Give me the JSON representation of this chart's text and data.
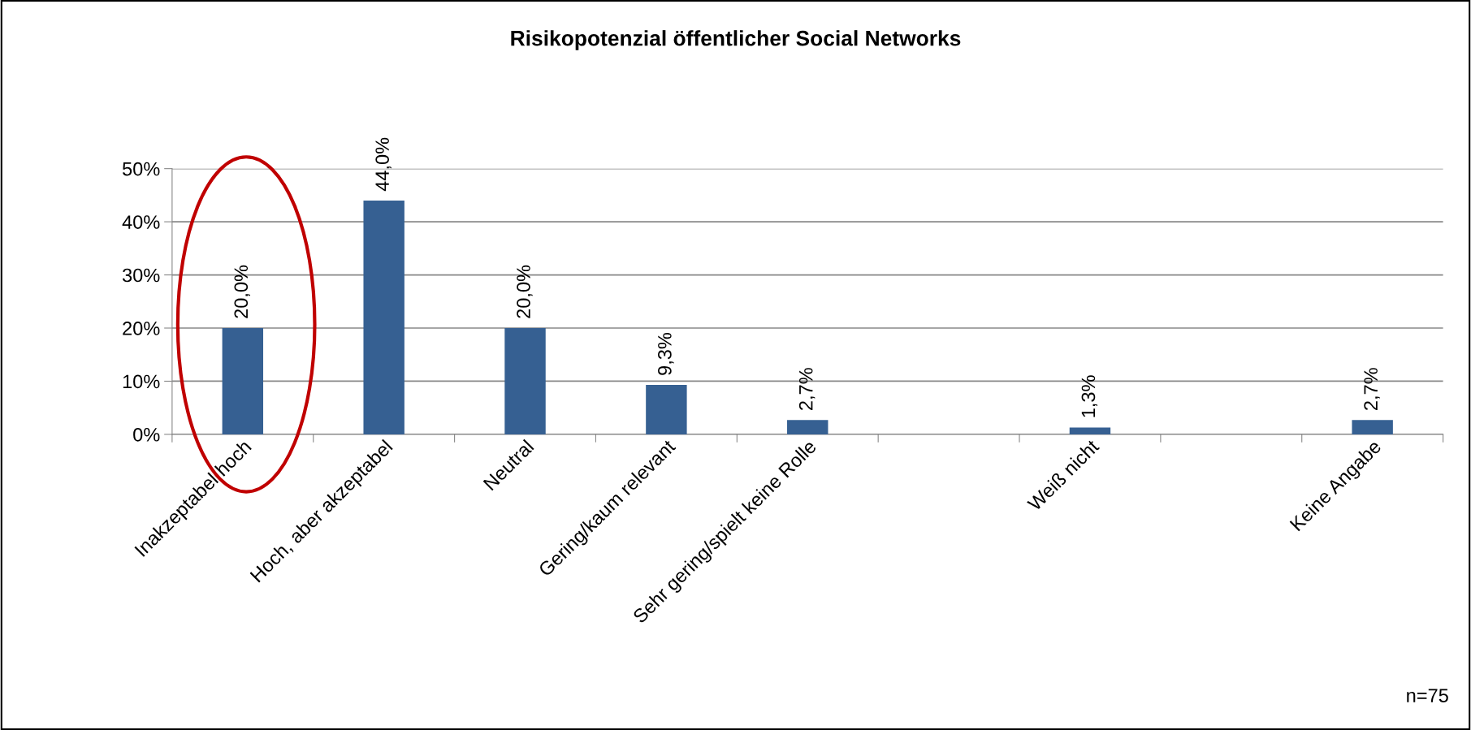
{
  "chart_data": {
    "type": "bar",
    "title": "Risikopotenzial öffentlicher Social Networks",
    "categories": [
      "Inakzeptabel hoch",
      "Hoch, aber akzeptabel",
      "Neutral",
      "Gering/kaum relevant",
      "Sehr gering/spielt keine Rolle",
      null,
      "Weiß nicht",
      null,
      "Keine Angabe"
    ],
    "values": [
      20.0,
      44.0,
      20.0,
      9.3,
      2.7,
      null,
      1.3,
      null,
      2.7
    ],
    "value_labels": [
      "20,0%",
      "44,0%",
      "20,0%",
      "9,3%",
      "2,7%",
      null,
      "1,3%",
      null,
      "2,7%"
    ],
    "color": "#366092",
    "ylim": [
      0,
      50
    ],
    "yticks": [
      {
        "value": 0,
        "label": "0%"
      },
      {
        "value": 10,
        "label": "10%"
      },
      {
        "value": 20,
        "label": "20%"
      },
      {
        "value": 30,
        "label": "30%"
      },
      {
        "value": 40,
        "label": "40%"
      },
      {
        "value": 50,
        "label": "50%"
      }
    ],
    "grid": "y",
    "annotations": [
      "n=75"
    ]
  }
}
